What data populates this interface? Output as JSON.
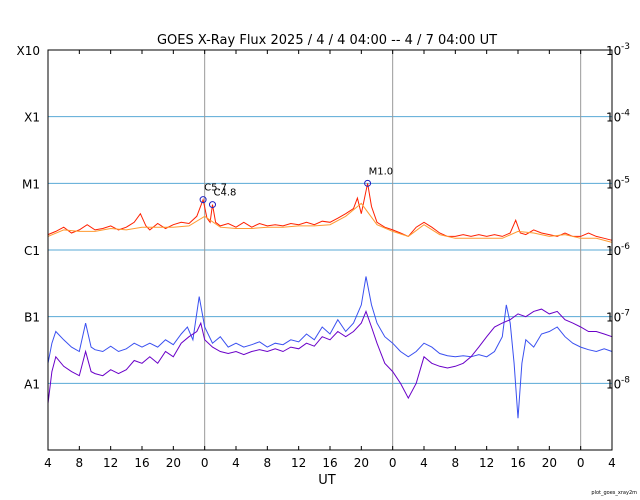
{
  "chart_data": {
    "type": "line",
    "title": "GOES X-Ray Flux   2025 /  4 /  4   04:00 --  4 /  7   04:00   UT",
    "xlabel": "UT",
    "footer": "plot_goes_xray2m",
    "x_range_hours": [
      0,
      72
    ],
    "x_tick_labels": [
      "4",
      "8",
      "12",
      "16",
      "20",
      "0",
      "4",
      "8",
      "12",
      "16",
      "20",
      "0",
      "4",
      "8",
      "12",
      "16",
      "20",
      "0",
      "4"
    ],
    "day_boundaries_hours": [
      20,
      44,
      68
    ],
    "y_scale": "log",
    "ylim": [
      "1e-9",
      "1e-3"
    ],
    "y_left_labels": [
      {
        "text": "X10",
        "value": "1e-3"
      },
      {
        "text": "X1",
        "value": "1e-4"
      },
      {
        "text": "M1",
        "value": "1e-5"
      },
      {
        "text": "C1",
        "value": "1e-6"
      },
      {
        "text": "B1",
        "value": "1e-7"
      },
      {
        "text": "A1",
        "value": "1e-8"
      }
    ],
    "y_right_exponents": [
      "-3",
      "-4",
      "-5",
      "-6",
      "-7",
      "-8"
    ],
    "grid": {
      "horizontal": true,
      "color": "#5aa9d6"
    },
    "annotations": [
      {
        "label": "C5.7",
        "x": 19.8,
        "y": "5.7e-6"
      },
      {
        "label": "C4.8",
        "x": 21.0,
        "y": "4.8e-6"
      },
      {
        "label": "M1.0",
        "x": 40.8,
        "y": "1.0e-5"
      }
    ],
    "series": [
      {
        "color": "#ff2000",
        "points": [
          [
            0,
            1.7e-06
          ],
          [
            1,
            1.9e-06
          ],
          [
            2,
            2.2e-06
          ],
          [
            3,
            1.8e-06
          ],
          [
            4,
            2e-06
          ],
          [
            5,
            2.4e-06
          ],
          [
            6,
            2e-06
          ],
          [
            7,
            2.1e-06
          ],
          [
            8,
            2.3e-06
          ],
          [
            9,
            2e-06
          ],
          [
            10,
            2.2e-06
          ],
          [
            11,
            2.6e-06
          ],
          [
            11.8,
            3.5e-06
          ],
          [
            12.5,
            2.3e-06
          ],
          [
            13,
            2e-06
          ],
          [
            14,
            2.5e-06
          ],
          [
            15,
            2.1e-06
          ],
          [
            16,
            2.4e-06
          ],
          [
            17,
            2.6e-06
          ],
          [
            18,
            2.5e-06
          ],
          [
            19,
            3.2e-06
          ],
          [
            19.8,
            5.7e-06
          ],
          [
            20.3,
            3e-06
          ],
          [
            20.7,
            2.6e-06
          ],
          [
            21.0,
            4.8e-06
          ],
          [
            21.4,
            2.6e-06
          ],
          [
            22,
            2.3e-06
          ],
          [
            23,
            2.5e-06
          ],
          [
            24,
            2.2e-06
          ],
          [
            25,
            2.6e-06
          ],
          [
            26,
            2.2e-06
          ],
          [
            27,
            2.5e-06
          ],
          [
            28,
            2.3e-06
          ],
          [
            29,
            2.4e-06
          ],
          [
            30,
            2.3e-06
          ],
          [
            31,
            2.5e-06
          ],
          [
            32,
            2.4e-06
          ],
          [
            33,
            2.6e-06
          ],
          [
            34,
            2.4e-06
          ],
          [
            35,
            2.7e-06
          ],
          [
            36,
            2.6e-06
          ],
          [
            37,
            3e-06
          ],
          [
            38,
            3.5e-06
          ],
          [
            39,
            4.2e-06
          ],
          [
            39.5,
            6e-06
          ],
          [
            40.0,
            3.5e-06
          ],
          [
            40.8,
            1e-05
          ],
          [
            41.3,
            4.5e-06
          ],
          [
            42,
            2.6e-06
          ],
          [
            43,
            2.2e-06
          ],
          [
            44,
            2e-06
          ],
          [
            45,
            1.8e-06
          ],
          [
            46,
            1.6e-06
          ],
          [
            47,
            2.2e-06
          ],
          [
            48,
            2.6e-06
          ],
          [
            49,
            2.2e-06
          ],
          [
            50,
            1.8e-06
          ],
          [
            51,
            1.6e-06
          ],
          [
            52,
            1.6e-06
          ],
          [
            53,
            1.7e-06
          ],
          [
            54,
            1.6e-06
          ],
          [
            55,
            1.7e-06
          ],
          [
            56,
            1.6e-06
          ],
          [
            57,
            1.7e-06
          ],
          [
            58,
            1.6e-06
          ],
          [
            59,
            1.8e-06
          ],
          [
            59.7,
            2.8e-06
          ],
          [
            60.3,
            1.8e-06
          ],
          [
            61,
            1.7e-06
          ],
          [
            62,
            2e-06
          ],
          [
            63,
            1.8e-06
          ],
          [
            64,
            1.7e-06
          ],
          [
            65,
            1.6e-06
          ],
          [
            66,
            1.8e-06
          ],
          [
            67,
            1.6e-06
          ],
          [
            68,
            1.6e-06
          ],
          [
            69,
            1.8e-06
          ],
          [
            70,
            1.6e-06
          ],
          [
            71,
            1.5e-06
          ],
          [
            72,
            1.4e-06
          ]
        ]
      },
      {
        "color": "#ff9a30",
        "points": [
          [
            0,
            1.6e-06
          ],
          [
            2,
            2e-06
          ],
          [
            4,
            1.9e-06
          ],
          [
            6,
            1.9e-06
          ],
          [
            8,
            2.1e-06
          ],
          [
            10,
            2e-06
          ],
          [
            12,
            2.2e-06
          ],
          [
            14,
            2.2e-06
          ],
          [
            16,
            2.2e-06
          ],
          [
            18,
            2.3e-06
          ],
          [
            20,
            3.2e-06
          ],
          [
            22,
            2.2e-06
          ],
          [
            24,
            2.1e-06
          ],
          [
            26,
            2.1e-06
          ],
          [
            28,
            2.2e-06
          ],
          [
            30,
            2.2e-06
          ],
          [
            32,
            2.3e-06
          ],
          [
            34,
            2.3e-06
          ],
          [
            36,
            2.4e-06
          ],
          [
            38,
            3.2e-06
          ],
          [
            40,
            5e-06
          ],
          [
            42,
            2.4e-06
          ],
          [
            44,
            1.9e-06
          ],
          [
            46,
            1.6e-06
          ],
          [
            48,
            2.4e-06
          ],
          [
            50,
            1.7e-06
          ],
          [
            52,
            1.5e-06
          ],
          [
            54,
            1.5e-06
          ],
          [
            56,
            1.5e-06
          ],
          [
            58,
            1.5e-06
          ],
          [
            60,
            1.9e-06
          ],
          [
            62,
            1.8e-06
          ],
          [
            64,
            1.6e-06
          ],
          [
            66,
            1.7e-06
          ],
          [
            68,
            1.5e-06
          ],
          [
            70,
            1.5e-06
          ],
          [
            72,
            1.3e-06
          ]
        ]
      },
      {
        "color": "#3a50f0",
        "points": [
          [
            0,
            2e-08
          ],
          [
            0.5,
            4e-08
          ],
          [
            1,
            6e-08
          ],
          [
            2,
            4.5e-08
          ],
          [
            3,
            3.5e-08
          ],
          [
            4,
            3e-08
          ],
          [
            4.8,
            8e-08
          ],
          [
            5.5,
            3.5e-08
          ],
          [
            6,
            3.2e-08
          ],
          [
            7,
            3e-08
          ],
          [
            8,
            3.6e-08
          ],
          [
            9,
            3e-08
          ],
          [
            10,
            3.3e-08
          ],
          [
            11,
            4e-08
          ],
          [
            12,
            3.5e-08
          ],
          [
            13,
            4e-08
          ],
          [
            14,
            3.5e-08
          ],
          [
            15,
            4.5e-08
          ],
          [
            16,
            3.8e-08
          ],
          [
            17,
            5.5e-08
          ],
          [
            17.8,
            7e-08
          ],
          [
            18.5,
            4.5e-08
          ],
          [
            19.3,
            2e-07
          ],
          [
            20,
            7e-08
          ],
          [
            21,
            4e-08
          ],
          [
            22,
            5e-08
          ],
          [
            23,
            3.5e-08
          ],
          [
            24,
            4e-08
          ],
          [
            25,
            3.5e-08
          ],
          [
            26,
            3.8e-08
          ],
          [
            27,
            4.2e-08
          ],
          [
            28,
            3.5e-08
          ],
          [
            29,
            4e-08
          ],
          [
            30,
            3.8e-08
          ],
          [
            31,
            4.5e-08
          ],
          [
            32,
            4.2e-08
          ],
          [
            33,
            5.5e-08
          ],
          [
            34,
            4.5e-08
          ],
          [
            35,
            7e-08
          ],
          [
            36,
            5.5e-08
          ],
          [
            37,
            9e-08
          ],
          [
            38,
            6e-08
          ],
          [
            39,
            8e-08
          ],
          [
            40,
            1.5e-07
          ],
          [
            40.6,
            4e-07
          ],
          [
            41.3,
            1.5e-07
          ],
          [
            42,
            8e-08
          ],
          [
            43,
            5e-08
          ],
          [
            44,
            4e-08
          ],
          [
            45,
            3e-08
          ],
          [
            46,
            2.5e-08
          ],
          [
            47,
            3e-08
          ],
          [
            48,
            4e-08
          ],
          [
            49,
            3.5e-08
          ],
          [
            50,
            2.8e-08
          ],
          [
            51,
            2.6e-08
          ],
          [
            52,
            2.5e-08
          ],
          [
            53,
            2.6e-08
          ],
          [
            54,
            2.5e-08
          ],
          [
            55,
            2.7e-08
          ],
          [
            56,
            2.5e-08
          ],
          [
            57,
            3e-08
          ],
          [
            58,
            5e-08
          ],
          [
            58.5,
            1.5e-07
          ],
          [
            59,
            8e-08
          ],
          [
            59.5,
            2e-08
          ],
          [
            60,
            3e-09
          ],
          [
            60.5,
            2e-08
          ],
          [
            61,
            4.5e-08
          ],
          [
            62,
            3.5e-08
          ],
          [
            63,
            5.5e-08
          ],
          [
            64,
            6e-08
          ],
          [
            65,
            7e-08
          ],
          [
            66,
            5e-08
          ],
          [
            67,
            4e-08
          ],
          [
            68,
            3.5e-08
          ],
          [
            69,
            3.2e-08
          ],
          [
            70,
            3e-08
          ],
          [
            71,
            3.3e-08
          ],
          [
            72,
            3e-08
          ]
        ]
      },
      {
        "color": "#6a00c8",
        "points": [
          [
            0,
            5e-09
          ],
          [
            0.5,
            1.5e-08
          ],
          [
            1,
            2.5e-08
          ],
          [
            2,
            1.8e-08
          ],
          [
            3,
            1.5e-08
          ],
          [
            4,
            1.3e-08
          ],
          [
            4.8,
            3e-08
          ],
          [
            5.5,
            1.5e-08
          ],
          [
            6,
            1.4e-08
          ],
          [
            7,
            1.3e-08
          ],
          [
            8,
            1.6e-08
          ],
          [
            9,
            1.4e-08
          ],
          [
            10,
            1.6e-08
          ],
          [
            11,
            2.2e-08
          ],
          [
            12,
            2e-08
          ],
          [
            13,
            2.5e-08
          ],
          [
            14,
            2e-08
          ],
          [
            15,
            3e-08
          ],
          [
            16,
            2.5e-08
          ],
          [
            17,
            4e-08
          ],
          [
            18,
            5e-08
          ],
          [
            19,
            6e-08
          ],
          [
            19.5,
            8e-08
          ],
          [
            20,
            4.5e-08
          ],
          [
            21,
            3.5e-08
          ],
          [
            22,
            3e-08
          ],
          [
            23,
            2.8e-08
          ],
          [
            24,
            3e-08
          ],
          [
            25,
            2.7e-08
          ],
          [
            26,
            3e-08
          ],
          [
            27,
            3.2e-08
          ],
          [
            28,
            3e-08
          ],
          [
            29,
            3.3e-08
          ],
          [
            30,
            3e-08
          ],
          [
            31,
            3.5e-08
          ],
          [
            32,
            3.3e-08
          ],
          [
            33,
            4e-08
          ],
          [
            34,
            3.6e-08
          ],
          [
            35,
            5e-08
          ],
          [
            36,
            4.5e-08
          ],
          [
            37,
            6e-08
          ],
          [
            38,
            5e-08
          ],
          [
            39,
            6e-08
          ],
          [
            40,
            8e-08
          ],
          [
            40.6,
            1.2e-07
          ],
          [
            41.3,
            7e-08
          ],
          [
            42,
            4e-08
          ],
          [
            43,
            2e-08
          ],
          [
            44,
            1.5e-08
          ],
          [
            45,
            1e-08
          ],
          [
            46,
            6e-09
          ],
          [
            47,
            1e-08
          ],
          [
            48,
            2.5e-08
          ],
          [
            49,
            2e-08
          ],
          [
            50,
            1.8e-08
          ],
          [
            51,
            1.7e-08
          ],
          [
            52,
            1.8e-08
          ],
          [
            53,
            2e-08
          ],
          [
            54,
            2.5e-08
          ],
          [
            55,
            3.5e-08
          ],
          [
            56,
            5e-08
          ],
          [
            57,
            7e-08
          ],
          [
            58,
            8e-08
          ],
          [
            59,
            9e-08
          ],
          [
            60,
            1.1e-07
          ],
          [
            61,
            1e-07
          ],
          [
            62,
            1.2e-07
          ],
          [
            63,
            1.3e-07
          ],
          [
            64,
            1.1e-07
          ],
          [
            65,
            1.2e-07
          ],
          [
            66,
            9e-08
          ],
          [
            67,
            8e-08
          ],
          [
            68,
            7e-08
          ],
          [
            69,
            6e-08
          ],
          [
            70,
            6e-08
          ],
          [
            71,
            5.5e-08
          ],
          [
            72,
            5e-08
          ]
        ]
      }
    ]
  }
}
